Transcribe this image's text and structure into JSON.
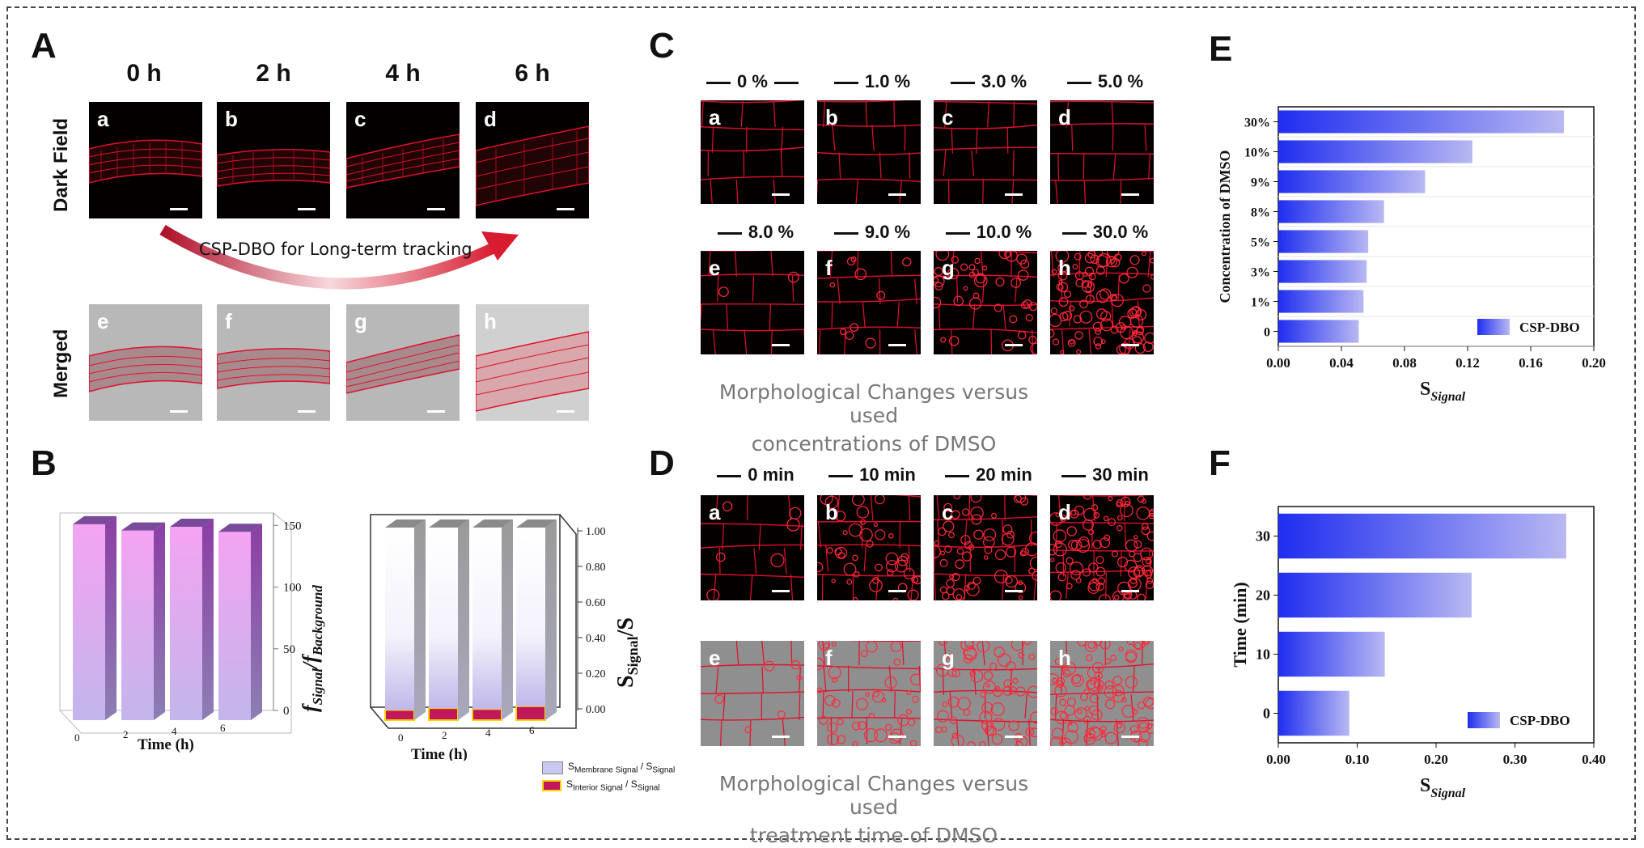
{
  "panels": {
    "A": {
      "letter": "A",
      "columns": [
        "0 h",
        "2 h",
        "4 h",
        "6 h"
      ],
      "rows": [
        "Dark Field",
        "Merged"
      ],
      "dark_tags": [
        "a",
        "b",
        "c",
        "d"
      ],
      "merged_tags": [
        "e",
        "f",
        "g",
        "h"
      ],
      "arrow_text": "CSP-DBO for Long-term tracking"
    },
    "B": {
      "letter": "B",
      "left_chart": {
        "categories": [
          "0",
          "2",
          "4",
          "6"
        ],
        "xlabel": "Time (h)",
        "ylabel_main": "f",
        "ylabel_sub1": "Signal",
        "ylabel_mid": "/f",
        "ylabel_sub2": "Background",
        "ticks": [
          "0",
          "50",
          "100",
          "150"
        ]
      },
      "right_chart": {
        "categories": [
          "0",
          "2",
          "4",
          "6"
        ],
        "xlabel": "Time (h)",
        "ylabel_main": "S",
        "ylabel_sub": "Signal",
        "ylabel_tail": "/S",
        "ticks": [
          "0.00",
          "0.20",
          "0.40",
          "0.60",
          "0.80",
          "1.00"
        ],
        "legend": [
          {
            "main": "S",
            "sub": "Membrane Signal",
            "tail": " / S",
            "sub2": "Signal",
            "color": "#c8c8f0"
          },
          {
            "main": "S",
            "sub": "Interior Signal",
            "tail": " / S",
            "sub2": "Signal",
            "color": "#c0185a"
          }
        ]
      }
    },
    "C": {
      "letter": "C",
      "conditions_top": [
        "0 %",
        "1.0 %",
        "3.0 %",
        "5.0 %"
      ],
      "conditions_bottom": [
        "8.0 %",
        "9.0 %",
        "10.0 %",
        "30.0 %"
      ],
      "tags_top": [
        "a",
        "b",
        "c",
        "d"
      ],
      "tags_bottom": [
        "e",
        "f",
        "g",
        "h"
      ],
      "caption_line1": "Morphological Changes versus used",
      "caption_line2": "concentrations of DMSO"
    },
    "D": {
      "letter": "D",
      "conditions": [
        "0 min",
        "10 min",
        "20 min",
        "30 min"
      ],
      "tags_top": [
        "a",
        "b",
        "c",
        "d"
      ],
      "tags_bottom": [
        "e",
        "f",
        "g",
        "h"
      ],
      "caption_line1": "Morphological Changes versus used",
      "caption_line2": "treatment time of DMSO"
    },
    "E": {
      "letter": "E"
    },
    "F": {
      "letter": "F"
    }
  },
  "chart_data": [
    {
      "type": "bar",
      "panel": "B-left",
      "categories": [
        "0",
        "2",
        "4",
        "6"
      ],
      "values": [
        155,
        150,
        153,
        149
      ],
      "xlabel": "Time (h)",
      "ylabel": "fSignal/fBackground",
      "ylim": [
        0,
        160
      ]
    },
    {
      "type": "bar",
      "panel": "B-right",
      "categories": [
        "0",
        "2",
        "4",
        "6"
      ],
      "series": [
        {
          "name": "SMembrane Signal / SSignal",
          "values": [
            0.98,
            0.97,
            0.975,
            0.96
          ]
        },
        {
          "name": "SInterior Signal / SSignal",
          "values": [
            0.02,
            0.03,
            0.025,
            0.04
          ]
        }
      ],
      "xlabel": "Time (h)",
      "ylabel": "SSignal/S",
      "ylim": [
        0,
        1.0
      ]
    },
    {
      "type": "bar",
      "panel": "E",
      "orientation": "horizontal",
      "categories": [
        "30%",
        "10%",
        "9%",
        "8%",
        "5%",
        "3%",
        "1%",
        "0"
      ],
      "values": [
        0.181,
        0.123,
        0.093,
        0.067,
        0.057,
        0.056,
        0.054,
        0.051
      ],
      "xlabel": "SSignal",
      "ylabel": "Concentration of DMSO",
      "xlim": [
        0,
        0.2
      ],
      "xticks": [
        "0.00",
        "0.04",
        "0.08",
        "0.12",
        "0.16",
        "0.20"
      ],
      "legend": "CSP-DBO"
    },
    {
      "type": "bar",
      "panel": "F",
      "orientation": "horizontal",
      "categories": [
        "30",
        "20",
        "10",
        "0"
      ],
      "values": [
        0.365,
        0.245,
        0.135,
        0.09
      ],
      "xlabel": "SSignal",
      "ylabel": "Time (min)",
      "xlim": [
        0,
        0.4
      ],
      "xticks": [
        "0.00",
        "0.10",
        "0.20",
        "0.30",
        "0.40"
      ],
      "legend": "CSP-DBO"
    }
  ],
  "colors": {
    "tissue_red": "#e0102a",
    "bar_blue": "#1f2ef0",
    "bar_pink": "#f2a6f0",
    "bar_purple": "#8e4aa8"
  }
}
